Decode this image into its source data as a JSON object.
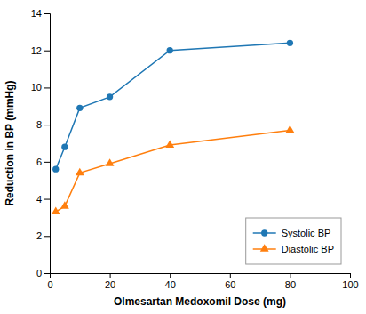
{
  "chart_data": {
    "type": "line",
    "xlabel": "Olmesartan Medoxomil Dose (mg)",
    "ylabel": "Reduction in BP (mmHg)",
    "x": [
      2,
      5,
      10,
      20,
      40,
      80
    ],
    "series": [
      {
        "name": "Systolic BP",
        "marker": "circle",
        "values": [
          5.6,
          6.8,
          8.9,
          9.5,
          12.0,
          12.4
        ]
      },
      {
        "name": "Diastolic BP",
        "marker": "triangle",
        "values": [
          3.3,
          3.6,
          5.4,
          5.9,
          6.9,
          7.7
        ]
      }
    ],
    "xlim": [
      0,
      100
    ],
    "ylim": [
      0,
      14
    ],
    "xticks": [
      0,
      20,
      40,
      60,
      80,
      100
    ],
    "yticks": [
      0,
      2,
      4,
      6,
      8,
      10,
      12,
      14
    ],
    "grid": false,
    "legend": "lower right"
  }
}
